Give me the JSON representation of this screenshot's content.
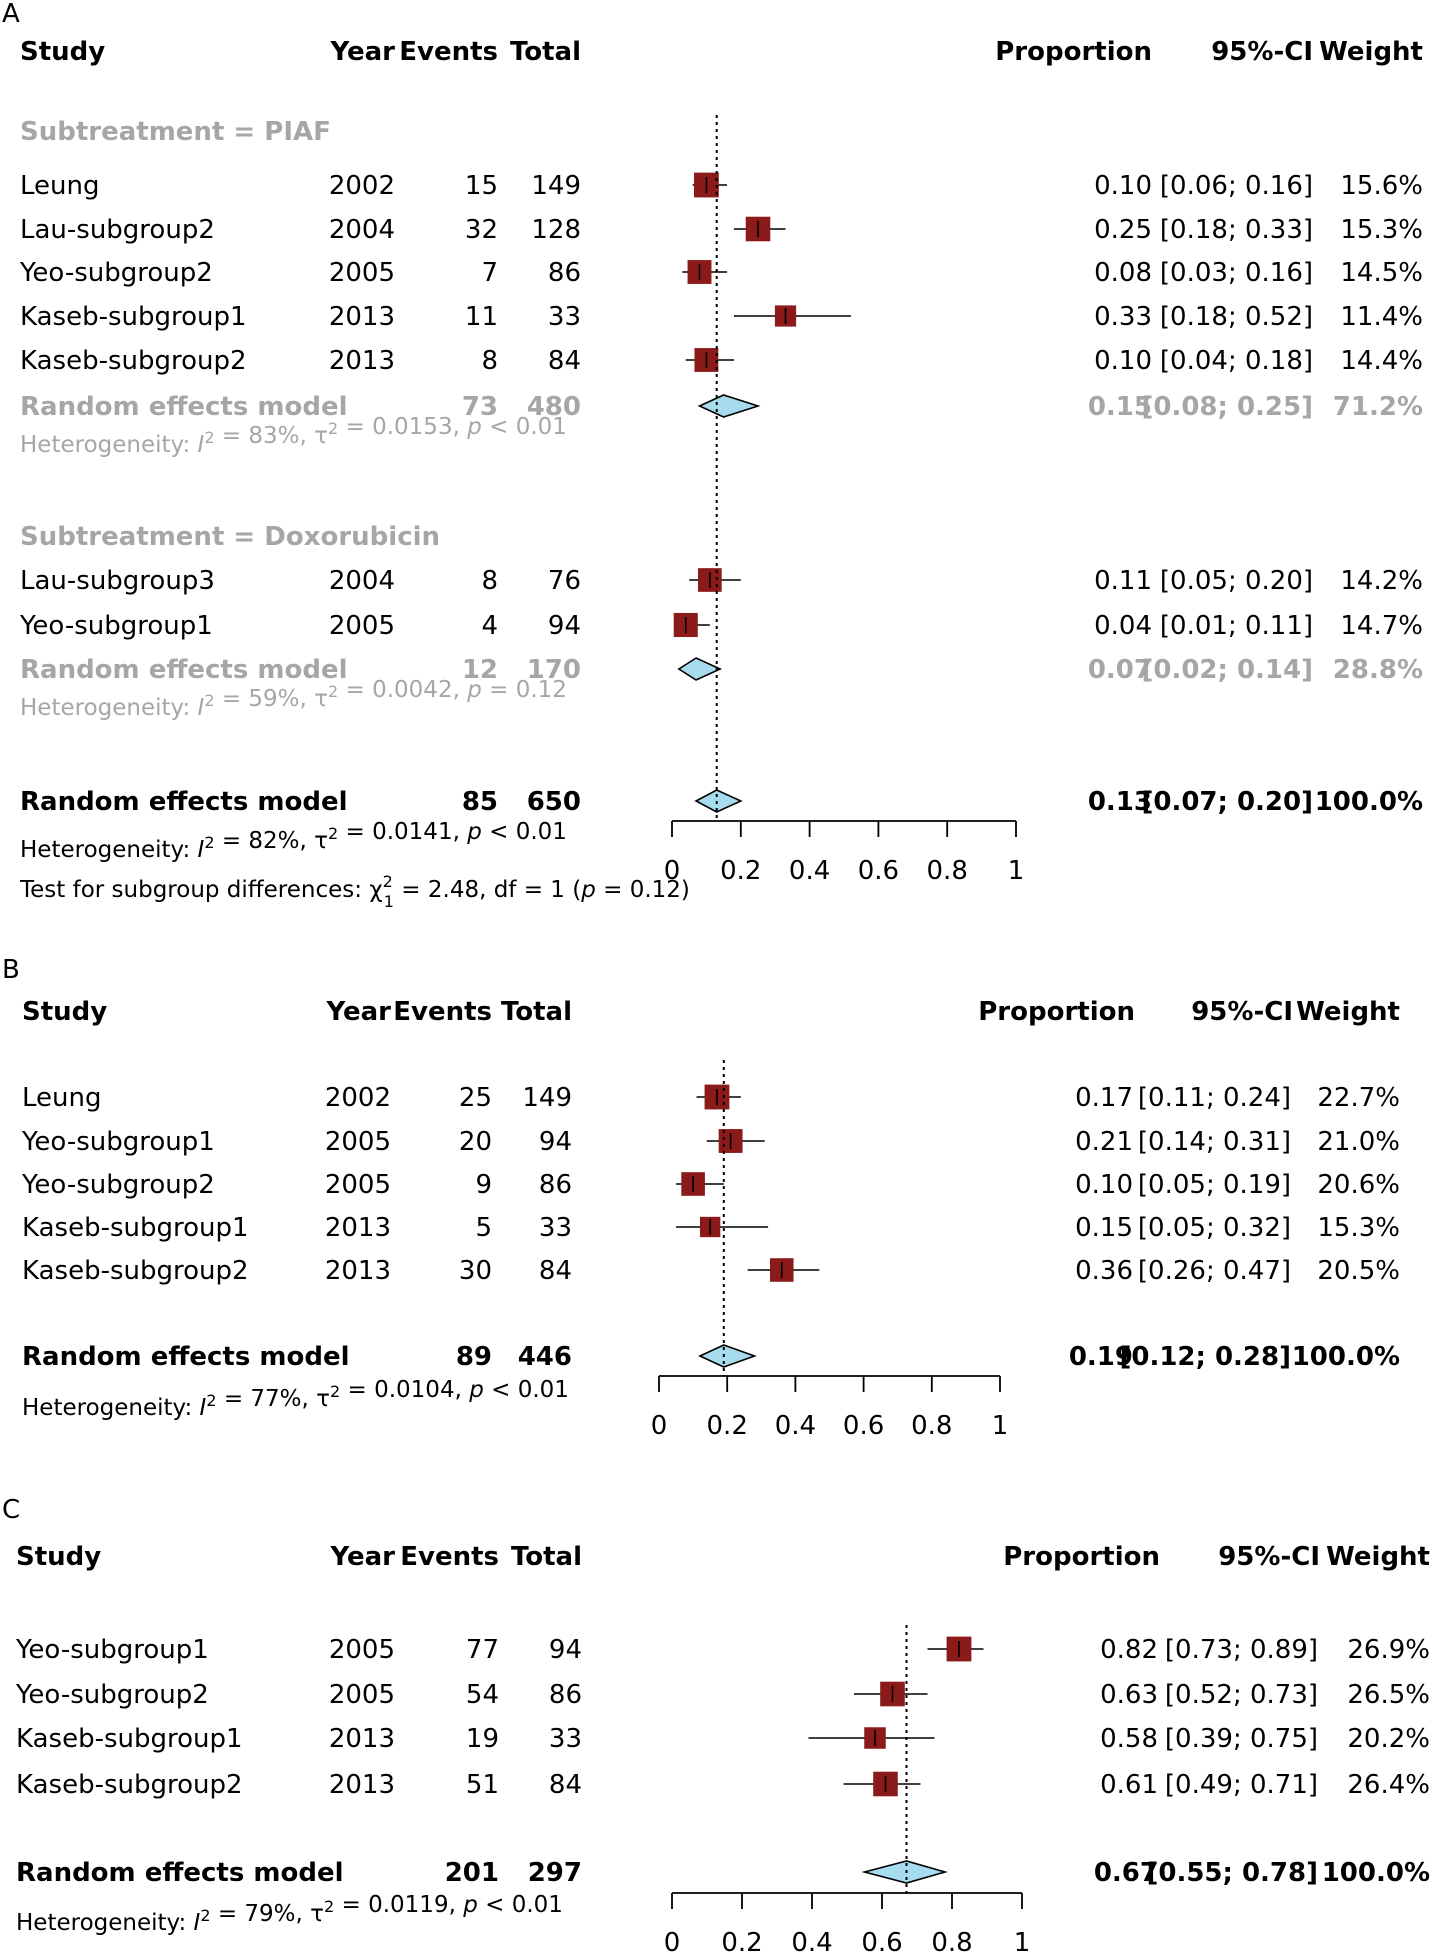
{
  "colors": {
    "square": "#8b1a1a",
    "diamond": "#a6dced",
    "grey_text": "#a6a6a6"
  },
  "chart_data": [
    {
      "type": "forest",
      "panel_label": "A",
      "headers": {
        "study": "Study",
        "year": "Year",
        "events": "Events",
        "total": "Total",
        "proportion": "Proportion",
        "ci": "95%-CI",
        "weight": "Weight"
      },
      "xlim": [
        0,
        1
      ],
      "ticks": [
        "0",
        "0.2",
        "0.4",
        "0.6",
        "0.8",
        "1"
      ],
      "tick_values": [
        0,
        0.2,
        0.4,
        0.6,
        0.8,
        1
      ],
      "reference_line": 0.13,
      "subgroups": [
        {
          "title": "Subtreatment = PIAF",
          "studies": [
            {
              "study": "Leung",
              "year": "2002",
              "events": "15",
              "total": "149",
              "prop": "0.10",
              "ci": "[0.06; 0.16]",
              "weight": "15.6%",
              "est": 0.1,
              "lo": 0.06,
              "hi": 0.16,
              "w": 15.6
            },
            {
              "study": "Lau-subgroup2",
              "year": "2004",
              "events": "32",
              "total": "128",
              "prop": "0.25",
              "ci": "[0.18; 0.33]",
              "weight": "15.3%",
              "est": 0.25,
              "lo": 0.18,
              "hi": 0.33,
              "w": 15.3
            },
            {
              "study": "Yeo-subgroup2",
              "year": "2005",
              "events": "7",
              "total": "86",
              "prop": "0.08",
              "ci": "[0.03; 0.16]",
              "weight": "14.5%",
              "est": 0.08,
              "lo": 0.03,
              "hi": 0.16,
              "w": 14.5
            },
            {
              "study": "Kaseb-subgroup1",
              "year": "2013",
              "events": "11",
              "total": "33",
              "prop": "0.33",
              "ci": "[0.18; 0.52]",
              "weight": "11.4%",
              "est": 0.33,
              "lo": 0.18,
              "hi": 0.52,
              "w": 11.4
            },
            {
              "study": "Kaseb-subgroup2",
              "year": "2013",
              "events": "8",
              "total": "84",
              "prop": "0.10",
              "ci": "[0.04; 0.18]",
              "weight": "14.4%",
              "est": 0.1,
              "lo": 0.04,
              "hi": 0.18,
              "w": 14.4
            }
          ],
          "model": {
            "label": "Random effects model",
            "events": "73",
            "total": "480",
            "prop": "0.15",
            "ci": "[0.08; 0.25]",
            "weight": "71.2%",
            "est": 0.15,
            "lo": 0.08,
            "hi": 0.25
          },
          "heterogeneity": {
            "i2": "83%",
            "tau2": "0.0153",
            "p": "< 0.01"
          }
        },
        {
          "title": "Subtreatment = Doxorubicin",
          "studies": [
            {
              "study": "Lau-subgroup3",
              "year": "2004",
              "events": "8",
              "total": "76",
              "prop": "0.11",
              "ci": "[0.05; 0.20]",
              "weight": "14.2%",
              "est": 0.11,
              "lo": 0.05,
              "hi": 0.2,
              "w": 14.2
            },
            {
              "study": "Yeo-subgroup1",
              "year": "2005",
              "events": "4",
              "total": "94",
              "prop": "0.04",
              "ci": "[0.01; 0.11]",
              "weight": "14.7%",
              "est": 0.04,
              "lo": 0.01,
              "hi": 0.11,
              "w": 14.7
            }
          ],
          "model": {
            "label": "Random effects model",
            "events": "12",
            "total": "170",
            "prop": "0.07",
            "ci": "[0.02; 0.14]",
            "weight": "28.8%",
            "est": 0.07,
            "lo": 0.02,
            "hi": 0.14
          },
          "heterogeneity": {
            "i2": "59%",
            "tau2": "0.0042",
            "p": "= 0.12"
          }
        }
      ],
      "overall": {
        "label": "Random effects model",
        "events": "85",
        "total": "650",
        "prop": "0.13",
        "ci": "[0.07; 0.20]",
        "weight": "100.0%",
        "est": 0.13,
        "lo": 0.07,
        "hi": 0.2
      },
      "heterogeneity": {
        "i2": "82%",
        "tau2": "0.0141",
        "p": "< 0.01"
      },
      "subgroup_test": {
        "chi2": "2.48",
        "df": "1",
        "p": "0.12"
      }
    },
    {
      "type": "forest",
      "panel_label": "B",
      "headers": {
        "study": "Study",
        "year": "Year",
        "events": "Events",
        "total": "Total",
        "proportion": "Proportion",
        "ci": "95%-CI",
        "weight": "Weight"
      },
      "xlim": [
        0,
        1
      ],
      "ticks": [
        "0",
        "0.2",
        "0.4",
        "0.6",
        "0.8",
        "1"
      ],
      "tick_values": [
        0,
        0.2,
        0.4,
        0.6,
        0.8,
        1
      ],
      "reference_line": 0.19,
      "studies": [
        {
          "study": "Leung",
          "year": "2002",
          "events": "25",
          "total": "149",
          "prop": "0.17",
          "ci": "[0.11; 0.24]",
          "weight": "22.7%",
          "est": 0.17,
          "lo": 0.11,
          "hi": 0.24,
          "w": 22.7
        },
        {
          "study": "Yeo-subgroup1",
          "year": "2005",
          "events": "20",
          "total": "94",
          "prop": "0.21",
          "ci": "[0.14; 0.31]",
          "weight": "21.0%",
          "est": 0.21,
          "lo": 0.14,
          "hi": 0.31,
          "w": 21.0
        },
        {
          "study": "Yeo-subgroup2",
          "year": "2005",
          "events": "9",
          "total": "86",
          "prop": "0.10",
          "ci": "[0.05; 0.19]",
          "weight": "20.6%",
          "est": 0.1,
          "lo": 0.05,
          "hi": 0.19,
          "w": 20.6
        },
        {
          "study": "Kaseb-subgroup1",
          "year": "2013",
          "events": "5",
          "total": "33",
          "prop": "0.15",
          "ci": "[0.05; 0.32]",
          "weight": "15.3%",
          "est": 0.15,
          "lo": 0.05,
          "hi": 0.32,
          "w": 15.3
        },
        {
          "study": "Kaseb-subgroup2",
          "year": "2013",
          "events": "30",
          "total": "84",
          "prop": "0.36",
          "ci": "[0.26; 0.47]",
          "weight": "20.5%",
          "est": 0.36,
          "lo": 0.26,
          "hi": 0.47,
          "w": 20.5
        }
      ],
      "overall": {
        "label": "Random effects model",
        "events": "89",
        "total": "446",
        "prop": "0.19",
        "ci": "[0.12; 0.28]",
        "weight": "100.0%",
        "est": 0.19,
        "lo": 0.12,
        "hi": 0.28
      },
      "heterogeneity": {
        "i2": "77%",
        "tau2": "0.0104",
        "p": "< 0.01"
      }
    },
    {
      "type": "forest",
      "panel_label": "C",
      "headers": {
        "study": "Study",
        "year": "Year",
        "events": "Events",
        "total": "Total",
        "proportion": "Proportion",
        "ci": "95%-CI",
        "weight": "Weight"
      },
      "xlim": [
        0,
        1
      ],
      "ticks": [
        "0",
        "0.2",
        "0.4",
        "0.6",
        "0.8",
        "1"
      ],
      "tick_values": [
        0,
        0.2,
        0.4,
        0.6,
        0.8,
        1
      ],
      "reference_line": 0.67,
      "studies": [
        {
          "study": "Yeo-subgroup1",
          "year": "2005",
          "events": "77",
          "total": "94",
          "prop": "0.82",
          "ci": "[0.73; 0.89]",
          "weight": "26.9%",
          "est": 0.82,
          "lo": 0.73,
          "hi": 0.89,
          "w": 26.9
        },
        {
          "study": "Yeo-subgroup2",
          "year": "2005",
          "events": "54",
          "total": "86",
          "prop": "0.63",
          "ci": "[0.52; 0.73]",
          "weight": "26.5%",
          "est": 0.63,
          "lo": 0.52,
          "hi": 0.73,
          "w": 26.5
        },
        {
          "study": "Kaseb-subgroup1",
          "year": "2013",
          "events": "19",
          "total": "33",
          "prop": "0.58",
          "ci": "[0.39; 0.75]",
          "weight": "20.2%",
          "est": 0.58,
          "lo": 0.39,
          "hi": 0.75,
          "w": 20.2
        },
        {
          "study": "Kaseb-subgroup2",
          "year": "2013",
          "events": "51",
          "total": "84",
          "prop": "0.61",
          "ci": "[0.49; 0.71]",
          "weight": "26.4%",
          "est": 0.61,
          "lo": 0.49,
          "hi": 0.71,
          "w": 26.4
        }
      ],
      "overall": {
        "label": "Random effects model",
        "events": "201",
        "total": "297",
        "prop": "0.67",
        "ci": "[0.55; 0.78]",
        "weight": "100.0%",
        "est": 0.67,
        "lo": 0.55,
        "hi": 0.78
      },
      "heterogeneity": {
        "i2": "79%",
        "tau2": "0.0119",
        "p": "< 0.01"
      }
    }
  ]
}
